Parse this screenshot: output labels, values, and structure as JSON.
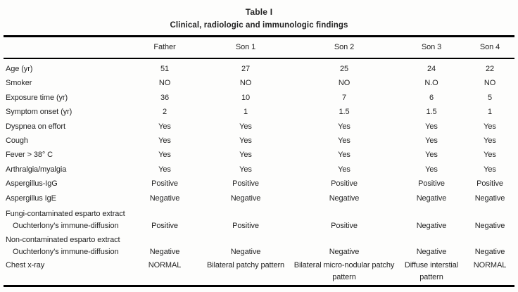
{
  "title": "Table I",
  "subtitle": "Clinical, radiologic and immunologic findings",
  "table": {
    "columns": [
      "",
      "Father",
      "Son 1",
      "Son 2",
      "Son 3",
      "Son 4"
    ],
    "rows": [
      {
        "label": "Age (yr)",
        "values": [
          "51",
          "27",
          "25",
          "24",
          "22"
        ]
      },
      {
        "label": "Smoker",
        "values": [
          "NO",
          "NO",
          "NO",
          "N.O",
          "NO"
        ]
      },
      {
        "label": "Exposure time (yr)",
        "values": [
          "36",
          "10",
          "7",
          "6",
          "5"
        ]
      },
      {
        "label": "Symptom onset (yr)",
        "values": [
          "2",
          "1",
          "1.5",
          "1.5",
          "1"
        ]
      },
      {
        "label": "Dyspnea on effort",
        "values": [
          "Yes",
          "Yes",
          "Yes",
          "Yes",
          "Yes"
        ]
      },
      {
        "label": "Cough",
        "values": [
          "Yes",
          "Yes",
          "Yes",
          "Yes",
          "Yes"
        ]
      },
      {
        "label": "Fever > 38° C",
        "values": [
          "Yes",
          "Yes",
          "Yes",
          "Yes",
          "Yes"
        ]
      },
      {
        "label": "Arthralgia/myalgia",
        "values": [
          "Yes",
          "Yes",
          "Yes",
          "Yes",
          "Yes"
        ]
      },
      {
        "label": "Aspergillus-IgG",
        "values": [
          "Positive",
          "Positive",
          "Positive",
          "Positive",
          "Positive"
        ]
      },
      {
        "label": "Aspergillus IgE",
        "values": [
          "Negative",
          "Negative",
          "Negative",
          "Negative",
          "Negative"
        ]
      },
      {
        "label": "Fungi-contaminated esparto extract",
        "sublabel": "Ouchterlony's immune-diffusion",
        "values": [
          "Positive",
          "Positive",
          "Positive",
          "Negative",
          "Negative"
        ]
      },
      {
        "label": "Non-contaminated esparto extract",
        "sublabel": "Ouchterlony's immune-diffusion",
        "values": [
          "Negative",
          "Negative",
          "Negative",
          "Negative",
          "Negative"
        ]
      },
      {
        "label": "Chest x-ray",
        "wrap": true,
        "values": [
          "NORMAL",
          "Bilateral patchy pattern",
          "Bilateral micro-nodular patchy pattern",
          "Diffuse interstial pattern",
          "NORMAL"
        ]
      }
    ]
  }
}
